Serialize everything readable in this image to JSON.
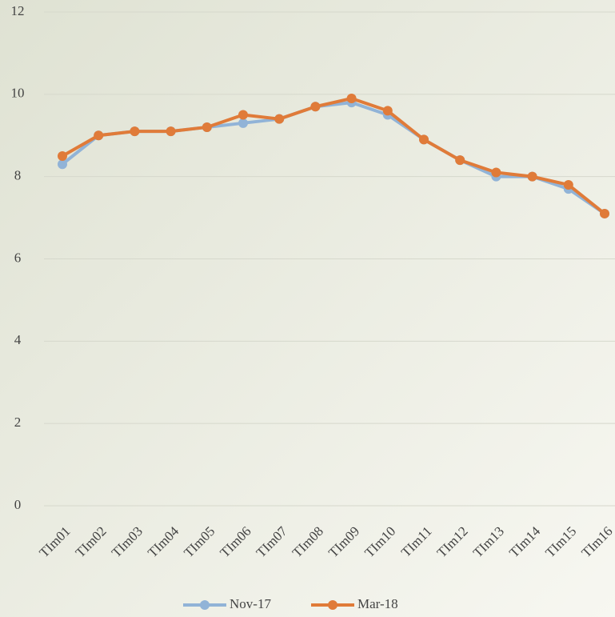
{
  "chart_data": {
    "type": "line",
    "categories": [
      "TIm01",
      "TIm02",
      "TIm03",
      "TIm04",
      "TIm05",
      "TIm06",
      "TIm07",
      "TIm08",
      "TIm09",
      "TIm10",
      "TIm11",
      "TIm12",
      "TIm13",
      "TIm14",
      "TIm15",
      "TIm16"
    ],
    "series": [
      {
        "name": "Nov-17",
        "color": "#91b3d7",
        "values": [
          8.3,
          9.0,
          9.1,
          9.1,
          9.2,
          9.3,
          9.4,
          9.7,
          9.8,
          9.5,
          8.9,
          8.4,
          8.0,
          8.0,
          7.7,
          7.1
        ]
      },
      {
        "name": "Mar-18",
        "color": "#e07b39",
        "values": [
          8.5,
          9.0,
          9.1,
          9.1,
          9.2,
          9.5,
          9.4,
          9.7,
          9.9,
          9.6,
          8.9,
          8.4,
          8.1,
          8.0,
          7.8,
          7.1
        ]
      }
    ],
    "ylim": [
      0,
      12
    ],
    "yticks": [
      0,
      2,
      4,
      6,
      8,
      10,
      12
    ],
    "grid": true,
    "legend": "bottom"
  }
}
